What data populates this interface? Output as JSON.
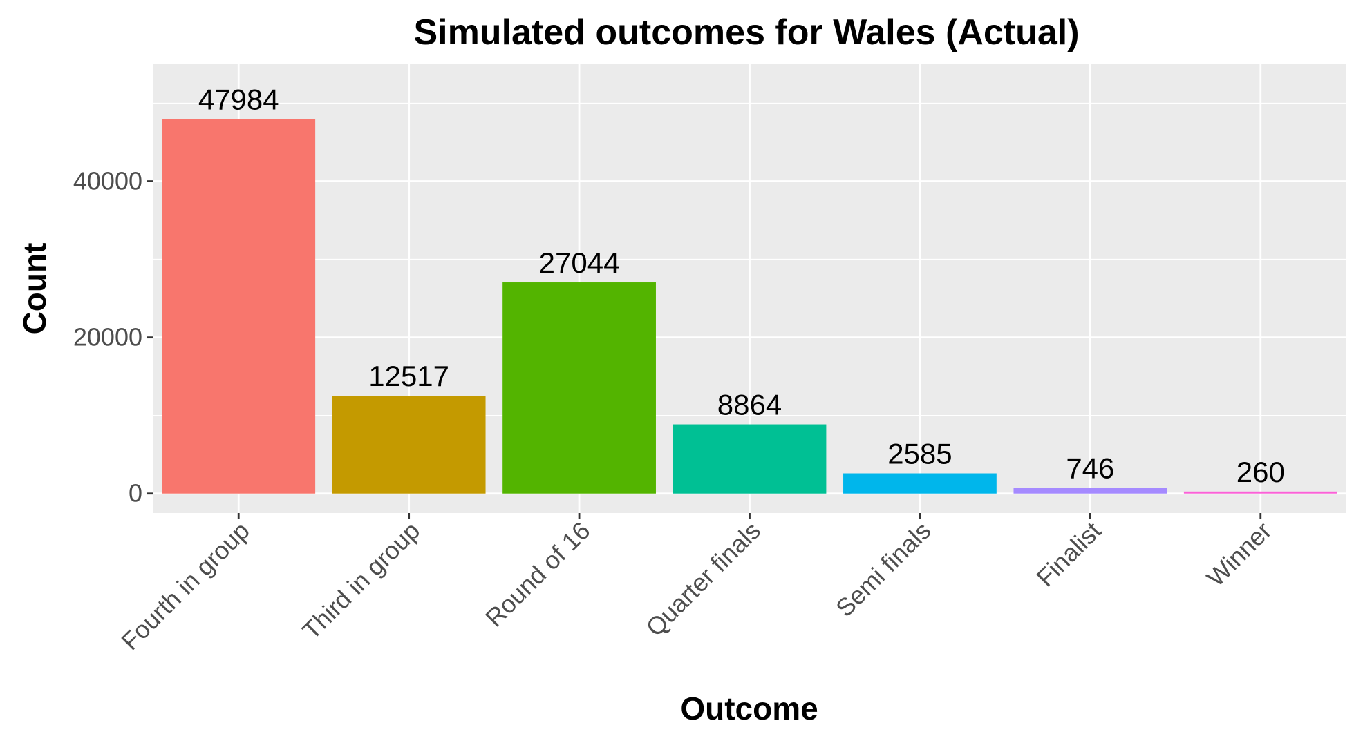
{
  "chart_data": {
    "type": "bar",
    "title": "Simulated outcomes for Wales (Actual)",
    "xlabel": "Outcome",
    "ylabel": "Count",
    "categories": [
      "Fourth in group",
      "Third in group",
      "Round of 16",
      "Quarter finals",
      "Semi finals",
      "Finalist",
      "Winner"
    ],
    "values": [
      47984,
      12517,
      27044,
      8864,
      2585,
      746,
      260
    ],
    "value_labels": [
      "47984",
      "12517",
      "27044",
      "8864",
      "2585",
      "746",
      "260"
    ],
    "colors": [
      "#F8766D",
      "#C49A00",
      "#53B400",
      "#00C094",
      "#00B6EB",
      "#A58AFF",
      "#FB61D7"
    ],
    "ylim": [
      -2500,
      55000
    ],
    "yticks": [
      0,
      20000,
      40000
    ],
    "ytick_labels": [
      "0",
      "20000",
      "40000"
    ],
    "grid": true,
    "legend": "none",
    "panel_background": "#EBEBEB",
    "grid_color": "#FFFFFF"
  }
}
